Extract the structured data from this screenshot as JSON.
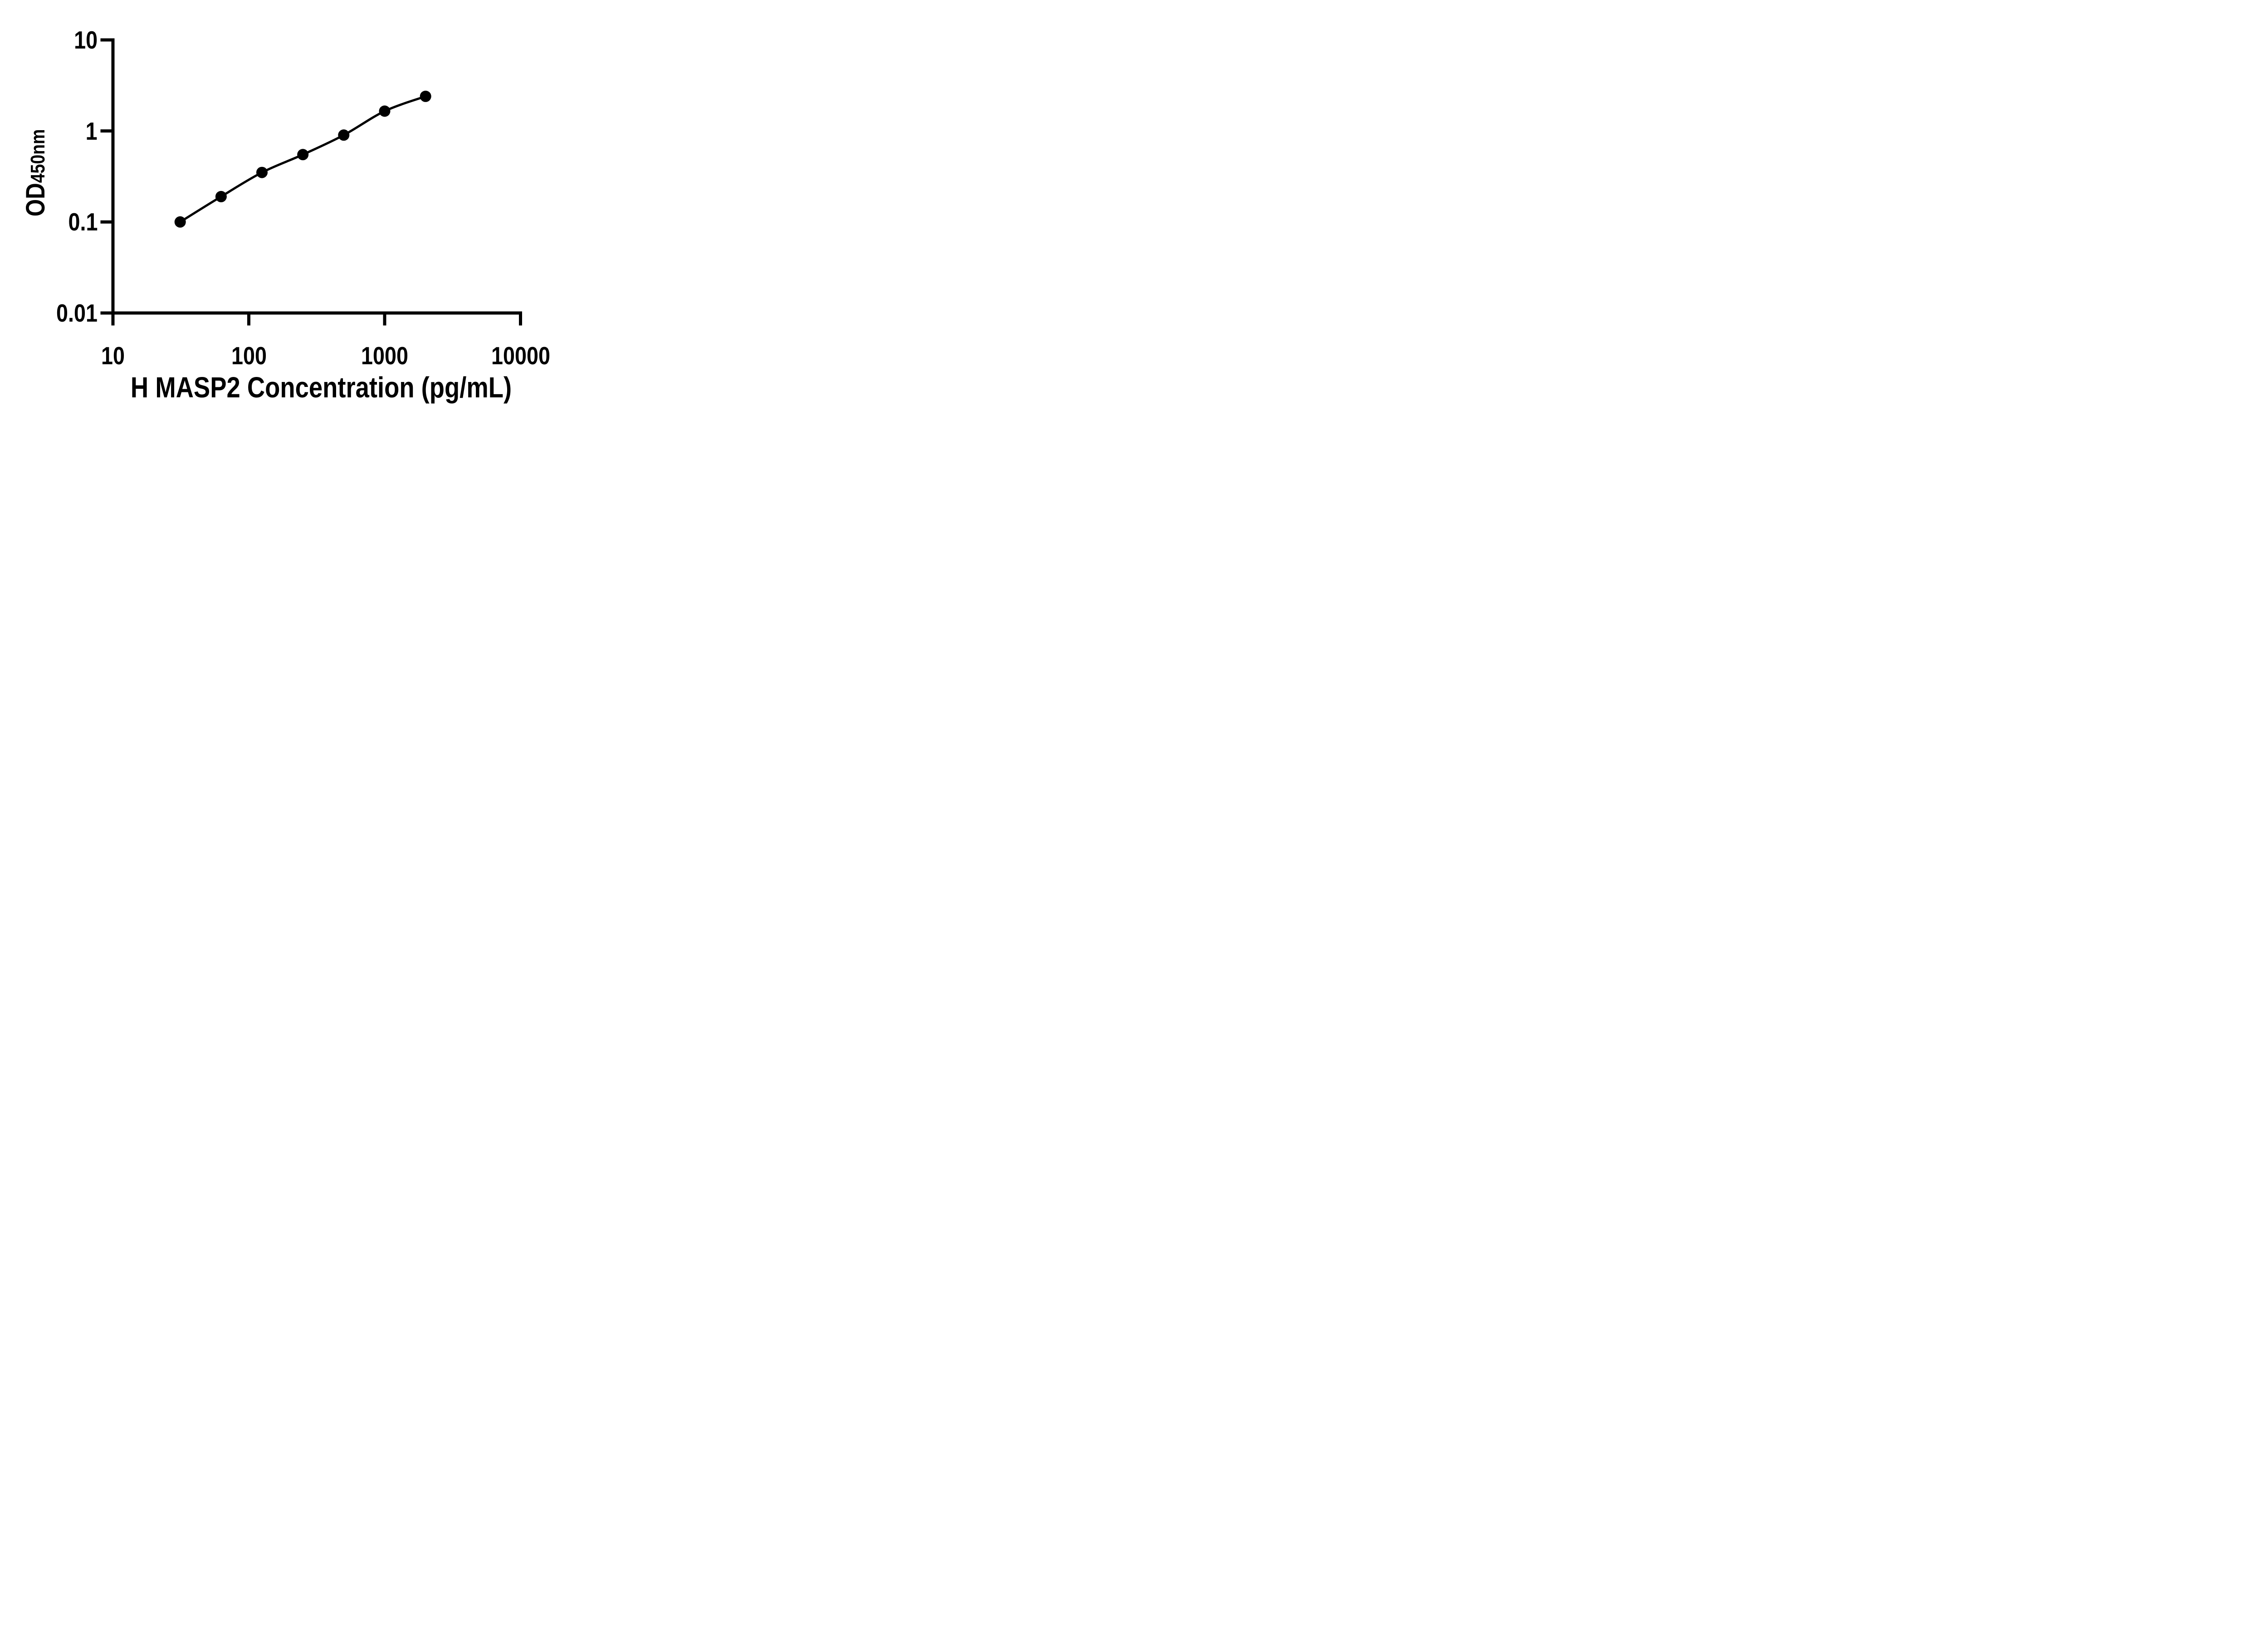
{
  "chart_data": {
    "type": "line",
    "markers": true,
    "title": "",
    "xlabel": "H MASP2 Concentration (pg/mL)",
    "ylabel_main": "OD",
    "ylabel_sub": "450nm",
    "x_scale": "log",
    "y_scale": "log",
    "xlim": [
      10,
      10000
    ],
    "ylim": [
      0.01,
      10
    ],
    "x_tick_values": [
      10,
      100,
      1000,
      10000
    ],
    "x_tick_labels": [
      "10",
      "100",
      "1000",
      "10000"
    ],
    "y_tick_values": [
      10,
      1,
      0.1,
      0.01
    ],
    "y_tick_labels": [
      "10",
      "1",
      "0.1",
      "0.01"
    ],
    "x": [
      31.25,
      62.5,
      125,
      250,
      500,
      1000,
      2000
    ],
    "y": [
      0.1,
      0.19,
      0.35,
      0.55,
      0.9,
      1.65,
      2.4
    ],
    "grid": false,
    "legend": null,
    "line_color": "#000000",
    "marker_color": "#000000",
    "axis_color": "#000000",
    "background": "#ffffff"
  }
}
